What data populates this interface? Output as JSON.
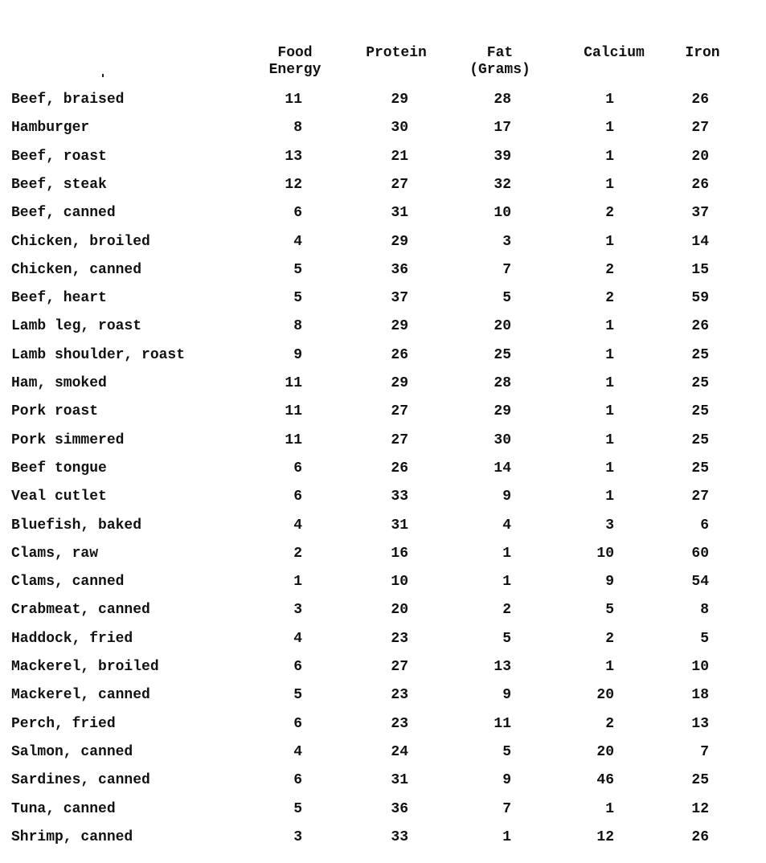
{
  "headers": {
    "food_energy": "Food\nEnergy",
    "protein": "Protein",
    "fat": "Fat\n(Grams)",
    "calcium": "Calcium",
    "iron": "Iron"
  },
  "rows": [
    {
      "name": "Beef, braised",
      "energy": "11",
      "protein": "29",
      "fat": "28",
      "calcium": "1",
      "iron": "26"
    },
    {
      "name": "Hamburger",
      "energy": "8",
      "protein": "30",
      "fat": "17",
      "calcium": "1",
      "iron": "27"
    },
    {
      "name": "Beef, roast",
      "energy": "13",
      "protein": "21",
      "fat": "39",
      "calcium": "1",
      "iron": "20"
    },
    {
      "name": "Beef, steak",
      "energy": "12",
      "protein": "27",
      "fat": "32",
      "calcium": "1",
      "iron": "26"
    },
    {
      "name": "Beef, canned",
      "energy": "6",
      "protein": "31",
      "fat": "10",
      "calcium": "2",
      "iron": "37"
    },
    {
      "name": "Chicken, broiled",
      "energy": "4",
      "protein": "29",
      "fat": "3",
      "calcium": "1",
      "iron": "14"
    },
    {
      "name": "Chicken, canned",
      "energy": "5",
      "protein": "36",
      "fat": "7",
      "calcium": "2",
      "iron": "15"
    },
    {
      "name": "Beef, heart",
      "energy": "5",
      "protein": "37",
      "fat": "5",
      "calcium": "2",
      "iron": "59"
    },
    {
      "name": "Lamb leg, roast",
      "energy": "8",
      "protein": "29",
      "fat": "20",
      "calcium": "1",
      "iron": "26"
    },
    {
      "name": "Lamb shoulder, roast",
      "energy": "9",
      "protein": "26",
      "fat": "25",
      "calcium": "1",
      "iron": "25"
    },
    {
      "name": "Ham, smoked",
      "energy": "11",
      "protein": "29",
      "fat": "28",
      "calcium": "1",
      "iron": "25"
    },
    {
      "name": "Pork roast",
      "energy": "11",
      "protein": "27",
      "fat": "29",
      "calcium": "1",
      "iron": "25"
    },
    {
      "name": "Pork simmered",
      "energy": "11",
      "protein": "27",
      "fat": "30",
      "calcium": "1",
      "iron": "25"
    },
    {
      "name": "Beef tongue",
      "energy": "6",
      "protein": "26",
      "fat": "14",
      "calcium": "1",
      "iron": "25"
    },
    {
      "name": "Veal cutlet",
      "energy": "6",
      "protein": "33",
      "fat": "9",
      "calcium": "1",
      "iron": "27"
    },
    {
      "name": "Bluefish, baked",
      "energy": "4",
      "protein": "31",
      "fat": "4",
      "calcium": "3",
      "iron": "6"
    },
    {
      "name": "Clams, raw",
      "energy": "2",
      "protein": "16",
      "fat": "1",
      "calcium": "10",
      "iron": "60"
    },
    {
      "name": "Clams, canned",
      "energy": "1",
      "protein": "10",
      "fat": "1",
      "calcium": "9",
      "iron": "54"
    },
    {
      "name": "Crabmeat, canned",
      "energy": "3",
      "protein": "20",
      "fat": "2",
      "calcium": "5",
      "iron": "8"
    },
    {
      "name": "Haddock, fried",
      "energy": "4",
      "protein": "23",
      "fat": "5",
      "calcium": "2",
      "iron": "5"
    },
    {
      "name": "Mackerel, broiled",
      "energy": "6",
      "protein": "27",
      "fat": "13",
      "calcium": "1",
      "iron": "10"
    },
    {
      "name": "Mackerel, canned",
      "energy": "5",
      "protein": "23",
      "fat": "9",
      "calcium": "20",
      "iron": "18"
    },
    {
      "name": "Perch, fried",
      "energy": "6",
      "protein": "23",
      "fat": "11",
      "calcium": "2",
      "iron": "13"
    },
    {
      "name": "Salmon, canned",
      "energy": "4",
      "protein": "24",
      "fat": "5",
      "calcium": "20",
      "iron": "7"
    },
    {
      "name": "Sardines, canned",
      "energy": "6",
      "protein": "31",
      "fat": "9",
      "calcium": "46",
      "iron": "25"
    },
    {
      "name": "Tuna, canned",
      "energy": "5",
      "protein": "36",
      "fat": "7",
      "calcium": "1",
      "iron": "12"
    },
    {
      "name": "Shrimp, canned",
      "energy": "3",
      "protein": "33",
      "fat": "1",
      "calcium": "12",
      "iron": "26"
    }
  ]
}
